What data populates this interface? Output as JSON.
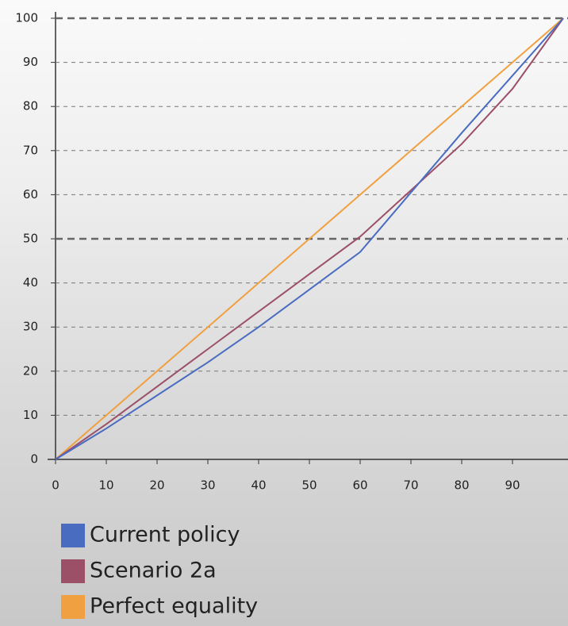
{
  "chart_data": {
    "type": "line",
    "x": [
      0,
      10,
      20,
      30,
      40,
      50,
      60,
      70,
      80,
      90,
      100
    ],
    "series": [
      {
        "name": "Current policy",
        "color": "#4a6cc0",
        "values": [
          0,
          7,
          14.5,
          22,
          30,
          38.5,
          47,
          60.5,
          74,
          87,
          100
        ]
      },
      {
        "name": "Scenario 2a",
        "color": "#9b5068",
        "values": [
          0,
          8,
          16.5,
          25,
          33.5,
          42,
          50.5,
          61,
          71.5,
          84,
          100
        ]
      },
      {
        "name": "Perfect equality",
        "color": "#f0a040",
        "values": [
          0,
          10,
          20,
          30,
          40,
          50,
          60,
          70,
          80,
          90,
          100
        ]
      }
    ],
    "xlim": [
      0,
      100
    ],
    "xticks": [
      0,
      10,
      20,
      30,
      40,
      50,
      60,
      70,
      80,
      90
    ],
    "ylim": [
      0,
      100
    ],
    "yticks": [
      0,
      10,
      20,
      30,
      40,
      50,
      60,
      70,
      80,
      90,
      100
    ],
    "grid": true,
    "emphasized_gridlines": [
      50,
      100
    ]
  }
}
